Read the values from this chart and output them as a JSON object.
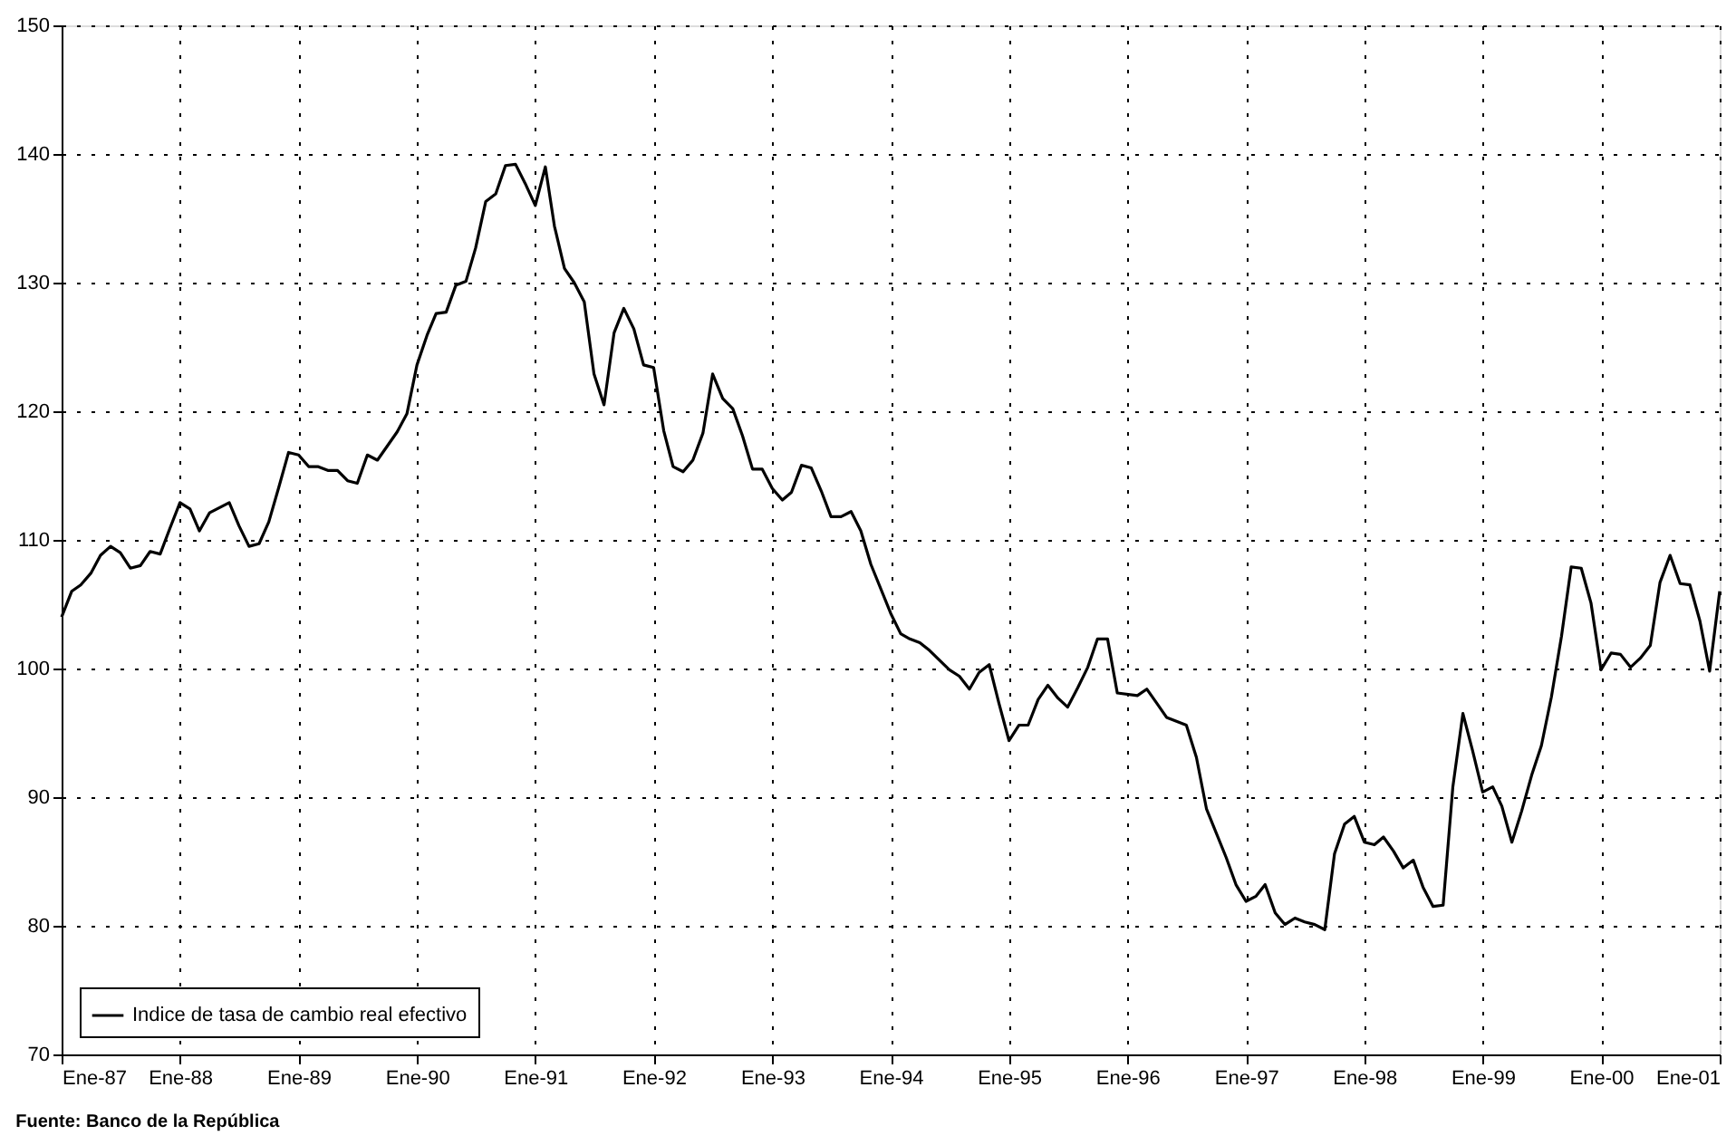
{
  "chart_data": {
    "type": "line",
    "x": [
      "1987-01",
      "1987-02",
      "1987-03",
      "1987-04",
      "1987-05",
      "1987-06",
      "1987-07",
      "1987-08",
      "1987-09",
      "1987-10",
      "1987-11",
      "1987-12",
      "1988-01",
      "1988-02",
      "1988-03",
      "1988-04",
      "1988-06",
      "1988-07",
      "1988-08",
      "1988-09",
      "1988-10",
      "1988-11",
      "1988-12",
      "1989-01",
      "1989-02",
      "1989-03",
      "1989-04",
      "1989-05",
      "1989-06",
      "1989-07",
      "1989-08",
      "1989-09",
      "1989-11",
      "1989-12",
      "1990-01",
      "1990-02",
      "1990-03",
      "1990-04",
      "1990-05",
      "1990-06",
      "1990-07",
      "1990-08",
      "1990-09",
      "1990-10",
      "1990-11",
      "1990-12",
      "1991-01",
      "1991-02",
      "1991-03",
      "1991-04",
      "1991-05",
      "1991-06",
      "1991-07",
      "1991-08",
      "1991-09",
      "1991-10",
      "1991-11",
      "1991-12",
      "1992-01",
      "1992-02",
      "1992-03",
      "1992-04",
      "1992-05",
      "1992-06",
      "1992-07",
      "1992-08",
      "1992-09",
      "1992-10",
      "1992-11",
      "1992-12",
      "1993-01",
      "1993-02",
      "1993-03",
      "1993-04",
      "1993-05",
      "1993-06",
      "1993-07",
      "1993-08",
      "1993-09",
      "1993-10",
      "1993-11",
      "1994-01",
      "1994-02",
      "1994-03",
      "1994-04",
      "1994-05",
      "1994-07",
      "1994-08",
      "1994-09",
      "1994-10",
      "1994-11",
      "1994-12",
      "1995-01",
      "1995-02",
      "1995-03",
      "1995-04",
      "1995-05",
      "1995-06",
      "1995-07",
      "1995-08",
      "1995-09",
      "1995-10",
      "1995-11",
      "1995-12",
      "1996-02",
      "1996-03",
      "1996-04",
      "1996-05",
      "1996-07",
      "1996-08",
      "1996-09",
      "1996-11",
      "1996-12",
      "1997-01",
      "1997-02",
      "1997-03",
      "1997-04",
      "1997-05",
      "1997-06",
      "1997-07",
      "1997-08",
      "1997-09",
      "1997-10",
      "1997-11",
      "1997-12",
      "1998-01",
      "1998-02",
      "1998-03",
      "1998-04",
      "1998-05",
      "1998-06",
      "1998-07",
      "1998-08",
      "1998-09",
      "1998-10",
      "1998-11",
      "1998-12",
      "1999-01",
      "1999-02",
      "1999-03",
      "1999-04",
      "1999-05",
      "1999-06",
      "1999-07",
      "1999-08",
      "1999-09",
      "1999-10",
      "1999-11",
      "1999-12",
      "2000-01",
      "2000-02",
      "2000-03",
      "2000-04",
      "2000-05",
      "2000-06",
      "2000-07",
      "2000-08",
      "2000-09",
      "2000-10",
      "2000-11",
      "2000-12",
      "2001-01"
    ],
    "series": [
      {
        "name": "Indice de tasa de cambio real efectivo",
        "color": "#000000",
        "values": [
          104,
          106,
          106.5,
          107.4,
          108.8,
          109.5,
          109,
          107.8,
          108,
          109.1,
          108.9,
          110.9,
          112.9,
          112.4,
          110.7,
          112.1,
          112.9,
          111.1,
          109.5,
          109.7,
          111.4,
          114.1,
          116.8,
          116.6,
          115.7,
          115.7,
          115.4,
          115.4,
          114.6,
          114.4,
          116.6,
          116.2,
          118.4,
          119.8,
          123.6,
          125.9,
          127.6,
          127.7,
          129.8,
          130.1,
          132.7,
          136.3,
          136.9,
          139.1,
          139.2,
          137.7,
          136,
          139,
          134.4,
          131.1,
          130,
          128.5,
          122.9,
          120.5,
          126.1,
          128,
          126.4,
          123.6,
          123.4,
          118.5,
          115.7,
          115.3,
          116.2,
          118.3,
          122.9,
          121,
          120.2,
          118.1,
          115.5,
          115.5,
          114,
          113.1,
          113.7,
          115.8,
          115.6,
          113.8,
          111.8,
          111.8,
          112.2,
          110.7,
          108.1,
          104.3,
          102.7,
          102.3,
          102,
          101.4,
          99.9,
          99.4,
          98.4,
          99.7,
          100.3,
          97.3,
          94.4,
          95.6,
          95.6,
          97.6,
          98.7,
          97.7,
          97,
          98.5,
          100.1,
          102.3,
          102.3,
          98.1,
          97.9,
          98.4,
          97.3,
          96.2,
          95.6,
          93.1,
          89.1,
          85.3,
          83.2,
          81.9,
          82.3,
          83.2,
          81,
          80.1,
          80.6,
          80.3,
          80.1,
          79.7,
          85.6,
          87.9,
          88.5,
          86.5,
          86.3,
          86.9,
          85.8,
          84.5,
          85.1,
          83,
          81.5,
          81.6,
          90.8,
          96.5,
          93.6,
          90.4,
          90.8,
          89.3,
          86.5,
          88.9,
          91.7,
          94,
          97.8,
          102.5,
          107.9,
          107.8,
          105.1,
          99.9,
          101.2,
          101.1,
          100.1,
          100.8,
          101.8,
          106.7,
          108.8,
          106.6,
          106.5,
          103.7,
          99.8,
          106
        ]
      }
    ],
    "xlim": [
      "1987-01",
      "2001-01"
    ],
    "xticks": [
      {
        "value": "1987-01",
        "label": "Ene-87"
      },
      {
        "value": "1988-01",
        "label": "Ene-88"
      },
      {
        "value": "1989-01",
        "label": "Ene-89"
      },
      {
        "value": "1990-01",
        "label": "Ene-90"
      },
      {
        "value": "1991-01",
        "label": "Ene-91"
      },
      {
        "value": "1992-01",
        "label": "Ene-92"
      },
      {
        "value": "1993-01",
        "label": "Ene-93"
      },
      {
        "value": "1994-01",
        "label": "Ene-94"
      },
      {
        "value": "1995-01",
        "label": "Ene-95"
      },
      {
        "value": "1996-01",
        "label": "Ene-96"
      },
      {
        "value": "1997-01",
        "label": "Ene-97"
      },
      {
        "value": "1998-01",
        "label": "Ene-98"
      },
      {
        "value": "1999-01",
        "label": "Ene-99"
      },
      {
        "value": "2000-01",
        "label": "Ene-00"
      },
      {
        "value": "2001-01",
        "label": "Ene-01"
      }
    ],
    "ylim": [
      70,
      150
    ],
    "yticks": [
      70,
      80,
      90,
      100,
      110,
      120,
      130,
      140,
      150
    ],
    "grid": true,
    "legend": "bottom left",
    "line_style": "solid",
    "marker": "none",
    "annotations": [
      "Fuente: Banco de la República"
    ]
  }
}
